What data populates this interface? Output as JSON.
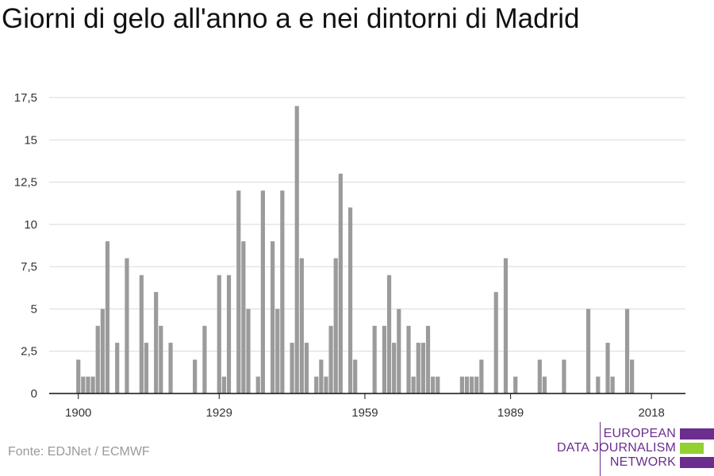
{
  "title": "Giorni di gelo all'anno a e nei dintorni di Madrid",
  "source": "Fonte: EDJNet / ECMWF",
  "logo": {
    "line1": "EUROPEAN",
    "line2": "DATA JOURNALISM",
    "line3": "NETWORK",
    "bar_colors": [
      "#6b2d8e",
      "#93d031",
      "#6b2d8e"
    ]
  },
  "colors": {
    "bar": "#9b9b9b",
    "grid": "#d9d9d9",
    "axis": "#111111"
  },
  "chart_data": {
    "type": "bar",
    "title": "Giorni di gelo all'anno a e nei dintorni di Madrid",
    "xlabel": "",
    "ylabel": "",
    "ylim": [
      0,
      17.5
    ],
    "y_ticks": [
      "0",
      "2,5",
      "5",
      "7,5",
      "10",
      "12,5",
      "15",
      "17,5"
    ],
    "x_ticks": [
      "1900",
      "1929",
      "1959",
      "1989",
      "2018"
    ],
    "x_range": [
      1894,
      2025
    ],
    "grid": true,
    "years": [
      1900,
      1901,
      1902,
      1903,
      1904,
      1905,
      1906,
      1907,
      1908,
      1909,
      1910,
      1911,
      1912,
      1913,
      1914,
      1915,
      1916,
      1917,
      1918,
      1919,
      1920,
      1921,
      1922,
      1923,
      1924,
      1925,
      1926,
      1927,
      1928,
      1929,
      1930,
      1931,
      1932,
      1933,
      1934,
      1935,
      1936,
      1937,
      1938,
      1939,
      1940,
      1941,
      1942,
      1943,
      1944,
      1945,
      1946,
      1947,
      1948,
      1949,
      1950,
      1951,
      1952,
      1953,
      1954,
      1955,
      1956,
      1957,
      1958,
      1959,
      1960,
      1961,
      1962,
      1963,
      1964,
      1965,
      1966,
      1967,
      1968,
      1969,
      1970,
      1971,
      1972,
      1973,
      1974,
      1975,
      1976,
      1977,
      1978,
      1979,
      1980,
      1981,
      1982,
      1983,
      1984,
      1985,
      1986,
      1987,
      1988,
      1989,
      1990,
      1991,
      1992,
      1993,
      1994,
      1995,
      1996,
      1997,
      1998,
      1999,
      2000,
      2001,
      2002,
      2003,
      2004,
      2005,
      2006,
      2007,
      2008,
      2009,
      2010,
      2011,
      2012,
      2013,
      2014,
      2015,
      2016,
      2017,
      2018
    ],
    "values": [
      2,
      1,
      1,
      1,
      4,
      5,
      9,
      0,
      3,
      0,
      8,
      0,
      0,
      7,
      3,
      0,
      6,
      4,
      0,
      3,
      0,
      0,
      0,
      0,
      2,
      0,
      4,
      0,
      0,
      7,
      1,
      7,
      0,
      12,
      9,
      5,
      0,
      1,
      12,
      0,
      9,
      5,
      12,
      0,
      3,
      17,
      8,
      3,
      0,
      1,
      2,
      1,
      4,
      8,
      13,
      0,
      11,
      2,
      0,
      0,
      0,
      4,
      0,
      4,
      7,
      3,
      5,
      0,
      4,
      1,
      3,
      3,
      4,
      1,
      1,
      0,
      0,
      0,
      0,
      1,
      1,
      1,
      1,
      2,
      0,
      0,
      6,
      0,
      8,
      0,
      1,
      0,
      0,
      0,
      0,
      2,
      1,
      0,
      0,
      0,
      2,
      0,
      0,
      0,
      0,
      5,
      0,
      1,
      0,
      3,
      1,
      0,
      0,
      5,
      2,
      0,
      0,
      0,
      0
    ]
  }
}
